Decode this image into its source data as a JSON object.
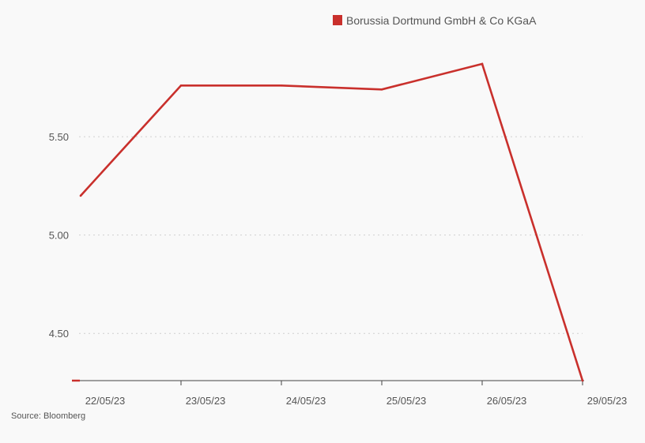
{
  "chart_data": {
    "type": "line",
    "x": [
      "22/05/23",
      "23/05/23",
      "24/05/23",
      "25/05/23",
      "26/05/23",
      "29/05/23"
    ],
    "series": [
      {
        "name": "Borussia Dortmund GmbH & Co KGaA",
        "values": [
          5.2,
          5.76,
          5.76,
          5.74,
          5.87,
          4.26
        ]
      }
    ],
    "y_ticks": [
      {
        "value": 4.5,
        "label": "4.50"
      },
      {
        "value": 5.0,
        "label": "5.00"
      },
      {
        "value": 5.5,
        "label": "5.50"
      }
    ],
    "ylim": [
      4.26,
      5.99
    ],
    "grid": "horizontal dotted",
    "legend": "top-right",
    "colors": {
      "series": "#c9302c",
      "grid": "#d0d0d0",
      "axis": "#444444"
    }
  },
  "source": "Source: Bloomberg"
}
